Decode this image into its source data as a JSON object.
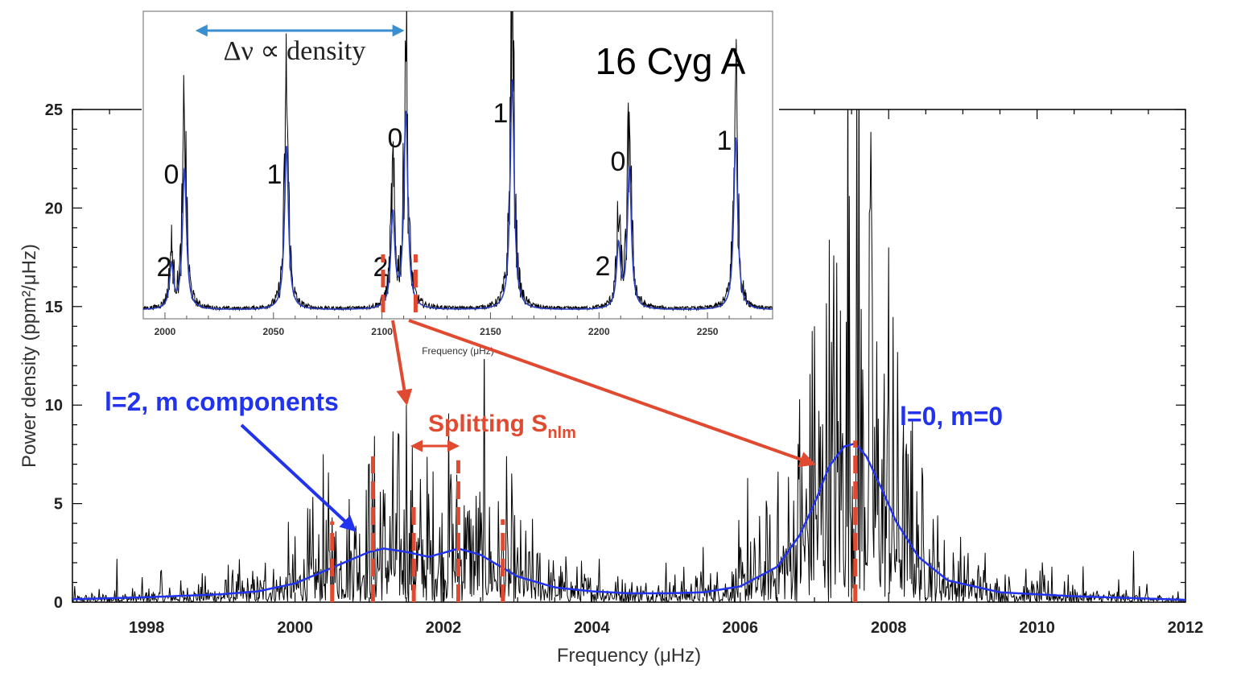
{
  "chart_data": [
    {
      "type": "line",
      "role": "main spectrum",
      "xlabel": "Frequency (μHz)",
      "ylabel": "Power density (ppm²/μHz)",
      "xlim": [
        1997,
        2012
      ],
      "ylim": [
        0,
        25
      ],
      "x_ticks": [
        "1998",
        "2000",
        "2002",
        "2004",
        "2006",
        "2008",
        "2010",
        "2012"
      ],
      "y_ticks": [
        "0",
        "5",
        "10",
        "15",
        "20",
        "25"
      ],
      "grid": false,
      "series": [
        {
          "kind": "power spectrum",
          "color": "#000000",
          "peaks": [
            {
              "x": 1997.6,
              "y": 2.2
            },
            {
              "x": 1998.2,
              "y": 1.6
            },
            {
              "x": 1999.1,
              "y": 1.9
            },
            {
              "x": 1999.6,
              "y": 2.0
            },
            {
              "x": 2000.2,
              "y": 2.6
            },
            {
              "x": 2000.5,
              "y": 4.3
            },
            {
              "x": 2000.8,
              "y": 3.6
            },
            {
              "x": 2001.0,
              "y": 7.0
            },
            {
              "x": 2001.15,
              "y": 5.6
            },
            {
              "x": 2001.5,
              "y": 10.0
            },
            {
              "x": 2001.8,
              "y": 5.5
            },
            {
              "x": 2002.1,
              "y": 6.5
            },
            {
              "x": 2002.3,
              "y": 4.3
            },
            {
              "x": 2002.8,
              "y": 3.3
            },
            {
              "x": 2003.3,
              "y": 2.5
            },
            {
              "x": 2004.1,
              "y": 2.2
            },
            {
              "x": 2005.0,
              "y": 2.0
            },
            {
              "x": 2005.5,
              "y": 2.8
            },
            {
              "x": 2006.1,
              "y": 6.3
            },
            {
              "x": 2006.5,
              "y": 4.3
            },
            {
              "x": 2006.8,
              "y": 10.3
            },
            {
              "x": 2007.0,
              "y": 14.0
            },
            {
              "x": 2007.2,
              "y": 18.0
            },
            {
              "x": 2007.45,
              "y": 30.0
            },
            {
              "x": 2007.6,
              "y": 30.0
            },
            {
              "x": 2007.75,
              "y": 20.0
            },
            {
              "x": 2008.0,
              "y": 18.0
            },
            {
              "x": 2008.3,
              "y": 8.7
            },
            {
              "x": 2008.6,
              "y": 3.6
            },
            {
              "x": 2009.3,
              "y": 2.5
            },
            {
              "x": 2010.2,
              "y": 1.8
            },
            {
              "x": 2011.3,
              "y": 2.6
            }
          ]
        },
        {
          "kind": "Lorentzian profile fit",
          "color": "#2233ee",
          "x": [
            1997,
            1998,
            1999,
            1999.5,
            2000,
            2000.5,
            2001,
            2001.2,
            2001.5,
            2001.8,
            2002,
            2002.2,
            2002.5,
            2003,
            2003.5,
            2004,
            2004.5,
            2005,
            2005.5,
            2006,
            2006.5,
            2006.8,
            2007.0,
            2007.2,
            2007.4,
            2007.55,
            2007.7,
            2007.9,
            2008.1,
            2008.4,
            2008.8,
            2009.5,
            2010.5,
            2012
          ],
          "y": [
            0.15,
            0.25,
            0.4,
            0.55,
            0.95,
            1.75,
            2.55,
            2.72,
            2.55,
            2.3,
            2.5,
            2.72,
            2.4,
            1.3,
            0.75,
            0.55,
            0.45,
            0.45,
            0.5,
            0.8,
            1.8,
            3.4,
            5.0,
            6.9,
            7.9,
            8.05,
            7.4,
            5.8,
            4.1,
            2.3,
            1.1,
            0.5,
            0.3,
            0.12
          ]
        }
      ],
      "mode_lines": {
        "color": "#e04a30",
        "l2_components_x": [
          2000.5,
          2001.05,
          2001.6,
          2002.2,
          2002.8
        ],
        "l0_x": 2007.55
      },
      "annotations": {
        "l2_label": "l=2, m components",
        "l0_label": "l=0, m=0",
        "splitting_label": "Splitting S",
        "splitting_subscript": "nlm"
      }
    },
    {
      "type": "line",
      "role": "inset spectrum",
      "title": "16 Cyg A",
      "xlabel": "Frequency (μHz)",
      "xlim": [
        1990,
        2280
      ],
      "x_ticks": [
        "2000",
        "2050",
        "2100",
        "2150",
        "2200",
        "2250"
      ],
      "grid": false,
      "delta_nu_label": "Δν ∝ density",
      "delta_nu_arrow": [
        2007,
        2110
      ],
      "modes": [
        {
          "x": 2003,
          "peak": 0.22,
          "degree": "2"
        },
        {
          "x": 2009,
          "peak": 0.72,
          "degree": "0"
        },
        {
          "x": 2056,
          "peak": 0.84,
          "degree": "1"
        },
        {
          "x": 2105,
          "peak": 0.48,
          "degree": "2"
        },
        {
          "x": 2111,
          "peak": 1.0,
          "degree": "0"
        },
        {
          "x": 2160,
          "peak": 1.18,
          "degree": "1"
        },
        {
          "x": 2209,
          "peak": 0.32,
          "degree": "2"
        },
        {
          "x": 2214,
          "peak": 0.72,
          "degree": "0"
        },
        {
          "x": 2263,
          "peak": 0.88,
          "degree": "1"
        }
      ],
      "mode_labels": [
        {
          "text": "0",
          "at": 2006
        },
        {
          "text": "1",
          "at": 2052
        },
        {
          "text": "2",
          "at": 2000
        },
        {
          "text": "2",
          "at": 2104
        },
        {
          "text": "0",
          "at": 2107
        },
        {
          "text": "1",
          "at": 2153
        },
        {
          "text": "0",
          "at": 2211
        },
        {
          "text": "2",
          "at": 2207
        },
        {
          "text": "1",
          "at": 2258
        }
      ]
    }
  ]
}
